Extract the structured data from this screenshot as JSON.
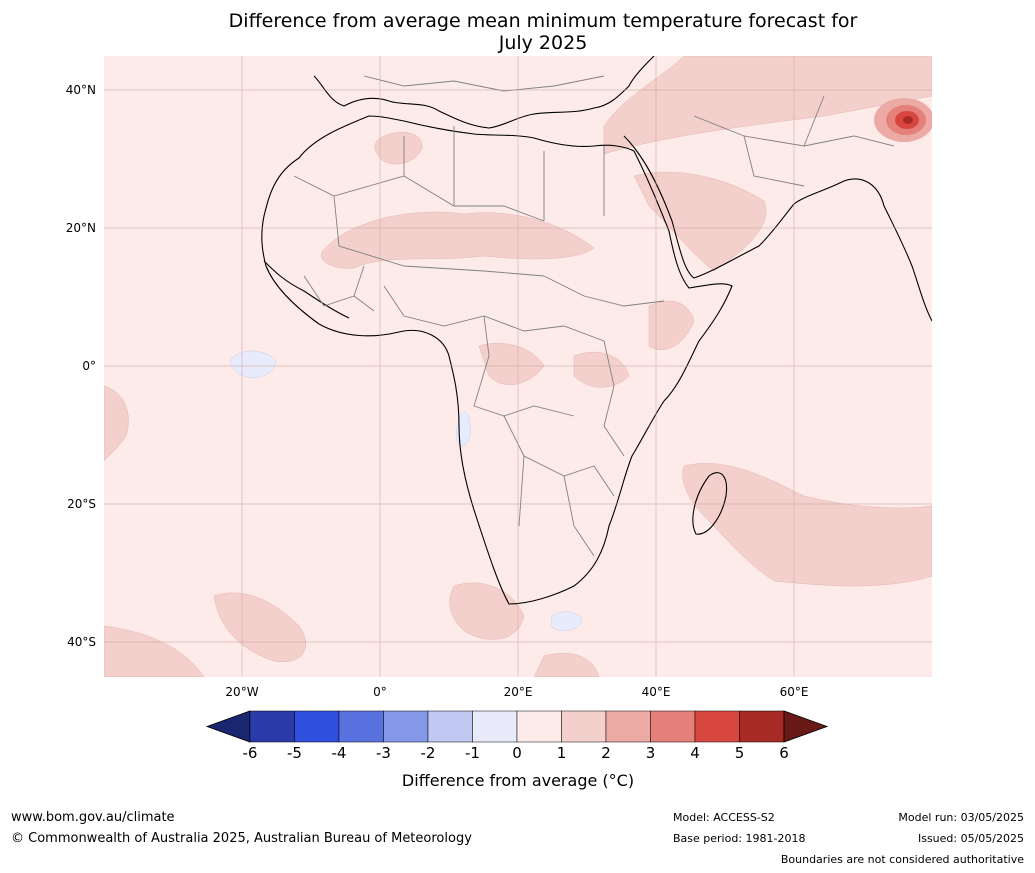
{
  "title_line1": "Difference from average mean minimum temperature forecast for",
  "title_line2": "July 2025",
  "map": {
    "land_fill": "#fcebe8",
    "warm1_fill": "#f4d0cc",
    "cool1_fill": "#e7ebfb",
    "hot_fill": "#d8473f",
    "coast_color": "#000000",
    "border_color": "#808080",
    "grid_color": "#c8a0a0",
    "lat_labels": [
      "40°N",
      "20°N",
      "0°",
      "20°S",
      "40°S"
    ],
    "lon_labels": [
      "20°W",
      "0°",
      "20°E",
      "40°E",
      "60°E"
    ]
  },
  "colorbar": {
    "ticks": [
      "-6",
      "-5",
      "-4",
      "-3",
      "-2",
      "-1",
      "0",
      "1",
      "2",
      "3",
      "4",
      "5",
      "6"
    ],
    "colors": [
      "#2a3aa8",
      "#2f50de",
      "#5a72e0",
      "#8597e8",
      "#c1c9f2",
      "#e9ebfa",
      "#fcebe8",
      "#f4d0cc",
      "#ecaaa5",
      "#e5807a",
      "#d8473f",
      "#a82a24"
    ],
    "under_color": "#1a2670",
    "over_color": "#6a1a16",
    "label": "Difference from average (°C)"
  },
  "footer": {
    "website": "www.bom.gov.au/climate",
    "copyright": "© Commonwealth of Australia 2025, Australian Bureau of Meteorology",
    "model": "Model: ACCESS-S2",
    "base_period": "Base period: 1981-2018",
    "model_run": "Model run: 03/05/2025",
    "issued": "Issued: 05/05/2025",
    "disclaimer": "Boundaries are not considered authoritative"
  }
}
